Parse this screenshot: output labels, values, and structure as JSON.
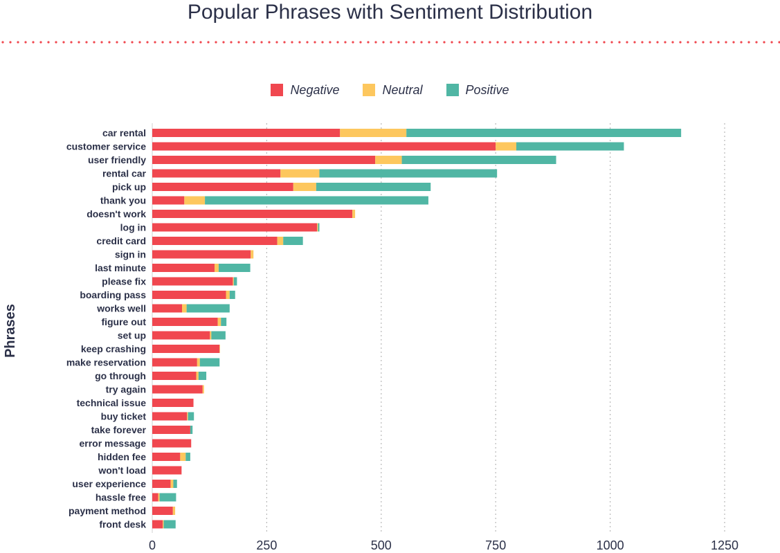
{
  "chart_data": {
    "type": "bar",
    "orientation": "horizontal",
    "stacked": true,
    "title": "Popular Phrases with Sentiment Distribution",
    "xlabel": "",
    "ylabel": "Phrases",
    "xlim": [
      0,
      1300
    ],
    "xticks": [
      0,
      250,
      500,
      750,
      1000,
      1250
    ],
    "grid": "vertical dotted",
    "legend_position": "top-center",
    "categories": [
      "car rental",
      "customer service",
      "user friendly",
      "rental car",
      "pick up",
      "thank you",
      "doesn't work",
      "log in",
      "credit card",
      "sign in",
      "last minute",
      "please fix",
      "boarding pass",
      "works well",
      "figure out",
      "set up",
      "keep crashing",
      "make reservation",
      "go through",
      "try again",
      "technical issue",
      "buy ticket",
      "take forever",
      "error message",
      "hidden fee",
      "won't load",
      "user experience",
      "hassle free",
      "payment method",
      "front desk"
    ],
    "series": [
      {
        "name": "Negative",
        "color": "#f0474f",
        "values": [
          410,
          750,
          487,
          280,
          308,
          70,
          437,
          360,
          273,
          215,
          136,
          176,
          161,
          65,
          143,
          126,
          147,
          98,
          96,
          110,
          90,
          76,
          83,
          85,
          61,
          64,
          40,
          13,
          45,
          23
        ]
      },
      {
        "name": "Neutral",
        "color": "#fdc75e",
        "values": [
          145,
          45,
          58,
          85,
          50,
          45,
          6,
          2,
          13,
          6,
          9,
          2,
          8,
          10,
          7,
          3,
          1,
          6,
          5,
          3,
          0,
          2,
          0,
          0,
          12,
          0,
          6,
          3,
          5,
          2
        ]
      },
      {
        "name": "Positive",
        "color": "#50b6a4",
        "values": [
          600,
          235,
          337,
          388,
          250,
          488,
          0,
          3,
          43,
          0,
          69,
          7,
          12,
          94,
          12,
          31,
          0,
          43,
          17,
          0,
          0,
          13,
          5,
          0,
          10,
          0,
          8,
          36,
          0,
          26
        ]
      }
    ]
  }
}
